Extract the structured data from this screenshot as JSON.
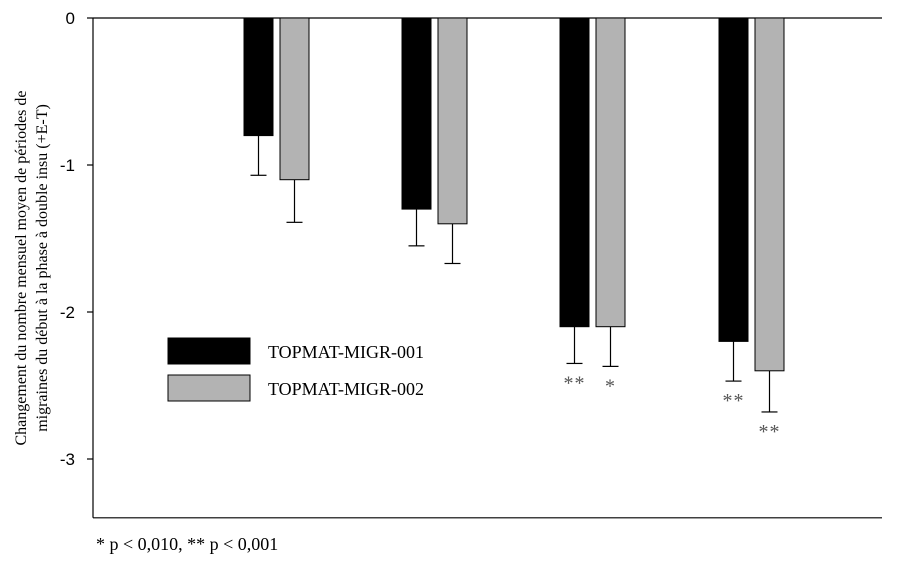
{
  "chart_data": {
    "type": "bar",
    "ylabel_lines": [
      "Changement du nombre mensuel moyen de périodes de",
      "migraines du début à la phase à double insu (+E-T)"
    ],
    "ylim": [
      -3.4,
      0
    ],
    "yticks": [
      0,
      -1,
      -2,
      -3
    ],
    "ytick_labels": [
      "0",
      "-1",
      "-2",
      "-3"
    ],
    "grid": false,
    "legend_position": "left",
    "groups": 4,
    "series": [
      {
        "name": "TOPMAT-MIGR-001",
        "color": "#000000",
        "values": [
          -0.8,
          -1.3,
          -2.1,
          -2.2
        ],
        "errors": [
          0.27,
          0.25,
          0.25,
          0.27
        ],
        "significance": [
          "",
          "",
          "**",
          "**"
        ]
      },
      {
        "name": "TOPMAT-MIGR-002",
        "color": "#b3b3b3",
        "values": [
          -1.1,
          -1.4,
          -2.1,
          -2.4
        ],
        "errors": [
          0.29,
          0.27,
          0.27,
          0.28
        ],
        "significance": [
          "",
          "",
          "*",
          "**"
        ]
      }
    ],
    "footnote": "* p < 0,010, ** p < 0,001"
  }
}
